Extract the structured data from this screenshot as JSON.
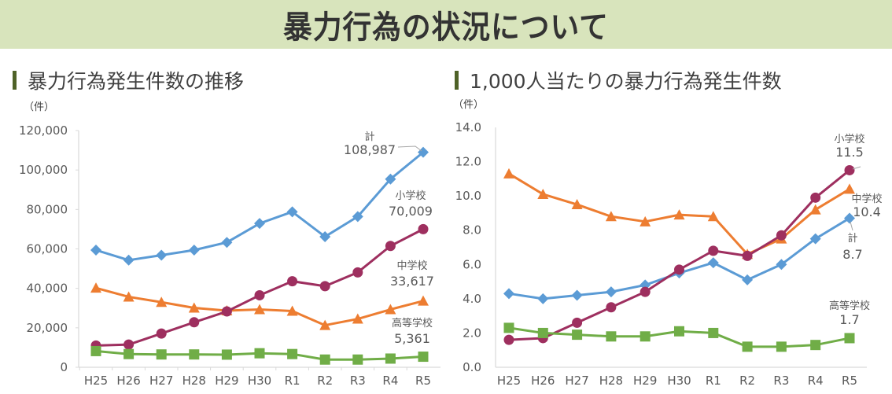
{
  "page": {
    "title": "暴力行為の状況について"
  },
  "colors": {
    "total": "#5b9bd5",
    "elementary": "#9e2f5f",
    "junior_high": "#ed7d31",
    "high_school": "#70ad47",
    "banner": "#d8e4bc",
    "title_bar": "#4f6228"
  },
  "chart_data": [
    {
      "type": "line",
      "title": "暴力行為発生件数の推移",
      "ylabel": "（件）",
      "xlabel": "",
      "categories": [
        "H25",
        "H26",
        "H27",
        "H28",
        "H29",
        "H30",
        "R1",
        "R2",
        "R3",
        "R4",
        "R5"
      ],
      "ylim": [
        0,
        120000
      ],
      "yticks": [
        0,
        20000,
        40000,
        60000,
        80000,
        100000,
        120000
      ],
      "ytick_labels": [
        "0",
        "20,000",
        "40,000",
        "60,000",
        "80,000",
        "100,000",
        "120,000"
      ],
      "grid": false,
      "series": [
        {
          "name": "計",
          "key": "total",
          "marker": "diamond",
          "values": [
            59400,
            54300,
            56800,
            59400,
            63300,
            72900,
            78800,
            66200,
            76400,
            95400,
            108987
          ],
          "end_label": "108,987"
        },
        {
          "name": "小学校",
          "key": "elementary",
          "marker": "circle",
          "values": [
            11000,
            11500,
            17100,
            22800,
            28300,
            36500,
            43600,
            41100,
            48100,
            61500,
            70009
          ],
          "end_label": "70,009"
        },
        {
          "name": "中学校",
          "key": "junior_high",
          "marker": "triangle",
          "values": [
            40200,
            35700,
            33000,
            30100,
            28700,
            29300,
            28500,
            21300,
            24500,
            29300,
            33617
          ],
          "end_label": "33,617"
        },
        {
          "name": "高等学校",
          "key": "high_school",
          "marker": "square",
          "values": [
            8200,
            6700,
            6500,
            6500,
            6400,
            7100,
            6700,
            3900,
            3900,
            4400,
            5361
          ],
          "end_label": "5,361"
        }
      ]
    },
    {
      "type": "line",
      "title": "1,000人当たりの暴力行為発生件数",
      "ylabel": "（件）",
      "xlabel": "",
      "categories": [
        "H25",
        "H26",
        "H27",
        "H28",
        "H29",
        "H30",
        "R1",
        "R2",
        "R3",
        "R4",
        "R5"
      ],
      "ylim": [
        0,
        14
      ],
      "yticks": [
        0,
        2,
        4,
        6,
        8,
        10,
        12,
        14
      ],
      "ytick_labels": [
        "0.0",
        "2.0",
        "4.0",
        "6.0",
        "8.0",
        "10.0",
        "12.0",
        "14.0"
      ],
      "grid": false,
      "series": [
        {
          "name": "小学校",
          "key": "elementary",
          "marker": "circle",
          "values": [
            1.6,
            1.7,
            2.6,
            3.5,
            4.4,
            5.7,
            6.8,
            6.5,
            7.7,
            9.9,
            11.5
          ],
          "end_label": "11.5"
        },
        {
          "name": "中学校",
          "key": "junior_high",
          "marker": "triangle",
          "values": [
            11.3,
            10.1,
            9.5,
            8.8,
            8.5,
            8.9,
            8.8,
            6.6,
            7.5,
            9.2,
            10.4
          ],
          "end_label": "10.4"
        },
        {
          "name": "計",
          "key": "total",
          "marker": "diamond",
          "values": [
            4.3,
            4.0,
            4.2,
            4.4,
            4.8,
            5.5,
            6.1,
            5.1,
            6.0,
            7.5,
            8.7
          ],
          "end_label": "8.7"
        },
        {
          "name": "高等学校",
          "key": "high_school",
          "marker": "square",
          "values": [
            2.3,
            2.0,
            1.9,
            1.8,
            1.8,
            2.1,
            2.0,
            1.2,
            1.2,
            1.3,
            1.7
          ],
          "end_label": "1.7"
        }
      ]
    }
  ]
}
